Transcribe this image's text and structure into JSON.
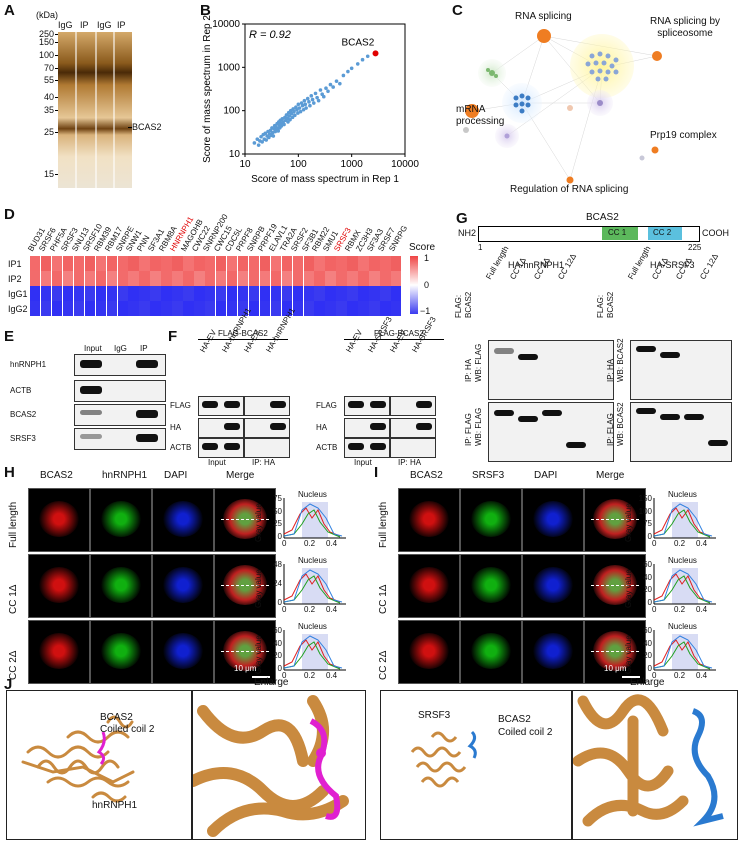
{
  "panels": {
    "A": "A",
    "B": "B",
    "C": "C",
    "D": "D",
    "E": "E",
    "F": "F",
    "G": "G",
    "H": "H",
    "I": "I",
    "J": "J"
  },
  "panelA": {
    "unit": "(kDa)",
    "lanes": [
      "IgG",
      "IP",
      "IgG",
      "IP"
    ],
    "markers": [
      "250",
      "150",
      "100",
      "70",
      "55",
      "40",
      "35",
      "25",
      "15"
    ],
    "target": "BCAS2"
  },
  "chart_data": {
    "type": "scatter",
    "annotation_r": "R = 0.92",
    "highlight": "BCAS2",
    "xlabel": "Score of mass spectrum in Rep 1",
    "ylabel": "Score of mass spectrum in Rep 2",
    "xscale": "log",
    "yscale": "log",
    "xlim": [
      10,
      10000
    ],
    "ylim": [
      10,
      10000
    ],
    "xticks": [
      "10",
      "100",
      "1000",
      "10000"
    ],
    "yticks": [
      "10",
      "100",
      "1000",
      "10000"
    ],
    "highlight_point": {
      "x": 2800,
      "y": 2100
    },
    "points": [
      [
        15,
        18
      ],
      [
        17,
        22
      ],
      [
        18,
        16
      ],
      [
        19,
        20
      ],
      [
        20,
        25
      ],
      [
        21,
        19
      ],
      [
        22,
        28
      ],
      [
        23,
        22
      ],
      [
        24,
        30
      ],
      [
        25,
        21
      ],
      [
        26,
        26
      ],
      [
        27,
        33
      ],
      [
        28,
        24
      ],
      [
        29,
        29
      ],
      [
        30,
        35
      ],
      [
        31,
        27
      ],
      [
        32,
        40
      ],
      [
        33,
        31
      ],
      [
        34,
        26
      ],
      [
        35,
        38
      ],
      [
        36,
        45
      ],
      [
        37,
        33
      ],
      [
        38,
        42
      ],
      [
        39,
        36
      ],
      [
        40,
        50
      ],
      [
        41,
        39
      ],
      [
        42,
        34
      ],
      [
        43,
        55
      ],
      [
        44,
        46
      ],
      [
        45,
        40
      ],
      [
        46,
        60
      ],
      [
        47,
        50
      ],
      [
        48,
        44
      ],
      [
        50,
        65
      ],
      [
        52,
        55
      ],
      [
        54,
        48
      ],
      [
        56,
        70
      ],
      [
        58,
        60
      ],
      [
        60,
        80
      ],
      [
        62,
        66
      ],
      [
        64,
        55
      ],
      [
        66,
        90
      ],
      [
        68,
        75
      ],
      [
        70,
        62
      ],
      [
        72,
        100
      ],
      [
        75,
        85
      ],
      [
        78,
        70
      ],
      [
        80,
        110
      ],
      [
        83,
        95
      ],
      [
        86,
        78
      ],
      [
        90,
        120
      ],
      [
        94,
        105
      ],
      [
        98,
        88
      ],
      [
        100,
        140
      ],
      [
        105,
        115
      ],
      [
        110,
        95
      ],
      [
        115,
        150
      ],
      [
        120,
        130
      ],
      [
        125,
        105
      ],
      [
        130,
        170
      ],
      [
        135,
        140
      ],
      [
        140,
        115
      ],
      [
        150,
        190
      ],
      [
        158,
        160
      ],
      [
        165,
        130
      ],
      [
        175,
        220
      ],
      [
        185,
        180
      ],
      [
        195,
        150
      ],
      [
        210,
        250
      ],
      [
        225,
        200
      ],
      [
        240,
        170
      ],
      [
        260,
        300
      ],
      [
        280,
        240
      ],
      [
        300,
        210
      ],
      [
        330,
        330
      ],
      [
        360,
        280
      ],
      [
        400,
        400
      ],
      [
        450,
        350
      ],
      [
        520,
        480
      ],
      [
        600,
        420
      ],
      [
        700,
        650
      ],
      [
        850,
        800
      ],
      [
        1000,
        950
      ],
      [
        1300,
        1200
      ],
      [
        1600,
        1500
      ],
      [
        2000,
        1800
      ]
    ]
  },
  "panelC": {
    "nodes": [
      "RNA splicing",
      "RNA splicing by spliceosome",
      "mRNA processing",
      "Prp19 complex",
      "Regulation of RNA splicing"
    ]
  },
  "panelD": {
    "genes": [
      "BUD31",
      "SRSF6",
      "PHF5A",
      "SRSF3",
      "SNU13",
      "SRSF10",
      "RBM39",
      "RBM17",
      "SNRPE",
      "SNW1",
      "PNN",
      "SF3A1",
      "RBM8A",
      "HNRNPH1",
      "MAGOHB",
      "CWC22",
      "SNRNP200",
      "CWC15",
      "CDC5L",
      "PRPF8",
      "SNRPB",
      "PRPF19",
      "ELAVL1",
      "TRA2A",
      "SRSF2",
      "SF3B1",
      "RBM22",
      "SMU1",
      "SRSF3",
      "RBMX",
      "ZC3H3",
      "SF3A3",
      "SRSF7",
      "SNRPG"
    ],
    "highlighted": [
      "HNRNPH1",
      "SRSF3"
    ],
    "rows": [
      "IP1",
      "IP2",
      "IgG1",
      "IgG2"
    ],
    "legend_title": "Score",
    "legend_ticks": [
      "1",
      "0",
      "−1"
    ]
  },
  "panelE": {
    "headers": [
      "Input",
      "IgG",
      "IP"
    ],
    "rows": [
      "hnRNPH1",
      "ACTB",
      "BCAS2",
      "SRSF3"
    ]
  },
  "panelF": {
    "left": {
      "title": "FLAG-BCAS2",
      "lanes": [
        "HA-EV",
        "HA-hnRNPH1",
        "HA-EV",
        "HA-hnRNPH1"
      ],
      "rows": [
        "FLAG",
        "HA",
        "ACTB"
      ],
      "groups": [
        "Input",
        "IP: HA"
      ]
    },
    "right": {
      "title": "FLAG-BCAS2",
      "lanes": [
        "HA-EV",
        "HA-SRSF3",
        "HA-EV",
        "HA-SRSF3"
      ],
      "rows": [
        "FLAG",
        "HA",
        "ACTB"
      ],
      "groups": [
        "Input",
        "IP: HA"
      ]
    }
  },
  "panelG": {
    "protein": "BCAS2",
    "nterm": "NH2",
    "cterm": "COOH",
    "start": "1",
    "end": "225",
    "cc1": "CC 1",
    "cc2": "CC 2",
    "left_title": "HA-hnRNPH1",
    "right_title": "HA-SRSF3",
    "flag_label": "FLAG:",
    "flag_label2": "BCAS2",
    "lanes": [
      "Full length",
      "CC 1Δ",
      "CC 2Δ",
      "CC 12Δ"
    ],
    "left_rows": [
      "IP: HA",
      "WB: FLAG",
      "IP: FLAG",
      "WB: FLAG"
    ],
    "right_rows": [
      "IP: HA",
      "WB: BCAS2",
      "IP: FLAG",
      "WB: BCAS2"
    ]
  },
  "panelH": {
    "cols": [
      "BCAS2",
      "hnRNPH1",
      "DAPI",
      "Merge"
    ],
    "rows": [
      "Full length",
      "CC 1Δ",
      "CC 2Δ"
    ],
    "scale": "10 μm",
    "plot_title": "Nucleus",
    "ylabel": "Gray value",
    "yticks": [
      [
        "75",
        "50",
        "25",
        "0"
      ],
      [
        "48",
        "24",
        "0"
      ],
      [
        "60",
        "40",
        "20",
        "0"
      ]
    ],
    "xticks": [
      "0",
      "0.2",
      "0.4"
    ]
  },
  "panelI": {
    "cols": [
      "BCAS2",
      "SRSF3",
      "DAPI",
      "Merge"
    ],
    "rows": [
      "Full length",
      "CC 1Δ",
      "CC 2Δ"
    ],
    "scale": "10 μm",
    "plot_title": "Nucleus",
    "ylabel": "Gray value",
    "yticks": [
      [
        "150",
        "100",
        "75",
        "0"
      ],
      [
        "60",
        "40",
        "20",
        "0"
      ],
      [
        "60",
        "40",
        "20",
        "0"
      ]
    ],
    "xticks": [
      "0",
      "0.2",
      "0.4"
    ]
  },
  "panelJ": {
    "enlarge": "Enlarge",
    "left_protein": "hnRNPH1",
    "left_coil_1": "BCAS2",
    "left_coil_2": "Coiled coil 2",
    "right_protein": "SRSF3",
    "right_coil_1": "BCAS2",
    "right_coil_2": "Coiled coil 2"
  },
  "colors": {
    "high": "#ef4444",
    "low": "#3b3bf0",
    "mid": "#ffffff",
    "cc1": "#5cb85c",
    "cc2": "#5bc0de",
    "gel": "#a86b1e",
    "node": "#ef7d22",
    "magenta": "#e020d0",
    "blue": "#2a7ad0",
    "orange": "#c98a3f"
  }
}
